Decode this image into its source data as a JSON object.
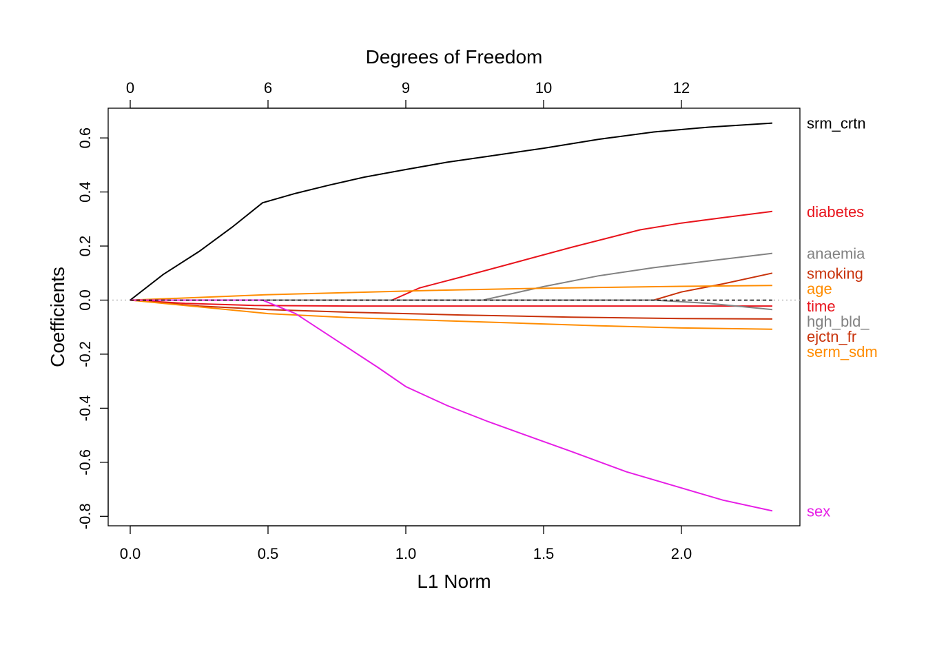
{
  "chart_data": {
    "type": "line",
    "title": "",
    "xlabel": "L1 Norm",
    "ylabel": "Coefficients",
    "top_axis_label": "Degrees of Freedom",
    "xlim": [
      -0.08,
      2.43
    ],
    "ylim": [
      -0.835,
      0.71
    ],
    "x_ticks": [
      {
        "value": 0.0,
        "label": "0.0"
      },
      {
        "value": 0.5,
        "label": "0.5"
      },
      {
        "value": 1.0,
        "label": "1.0"
      },
      {
        "value": 1.5,
        "label": "1.5"
      },
      {
        "value": 2.0,
        "label": "2.0"
      }
    ],
    "y_ticks": [
      {
        "value": 0.6,
        "label": "0.6"
      },
      {
        "value": 0.4,
        "label": "0.4"
      },
      {
        "value": 0.2,
        "label": "0.2"
      },
      {
        "value": 0.0,
        "label": "0.0"
      },
      {
        "value": -0.2,
        "label": "-0.2"
      },
      {
        "value": -0.4,
        "label": "-0.4"
      },
      {
        "value": -0.6,
        "label": "-0.6"
      },
      {
        "value": -0.8,
        "label": "-0.8"
      }
    ],
    "top_ticks": [
      {
        "value": 0.0,
        "label": "0"
      },
      {
        "value": 0.5,
        "label": "6"
      },
      {
        "value": 1.0,
        "label": "9"
      },
      {
        "value": 1.5,
        "label": "10"
      },
      {
        "value": 2.0,
        "label": "12"
      }
    ],
    "zero_line": true,
    "series": [
      {
        "name": "srm_crtn",
        "color": "#000000",
        "points": [
          [
            0.0,
            0.0
          ],
          [
            0.12,
            0.095
          ],
          [
            0.25,
            0.18
          ],
          [
            0.37,
            0.27
          ],
          [
            0.48,
            0.36
          ],
          [
            0.6,
            0.395
          ],
          [
            0.72,
            0.425
          ],
          [
            0.85,
            0.455
          ],
          [
            1.0,
            0.483
          ],
          [
            1.15,
            0.51
          ],
          [
            1.3,
            0.532
          ],
          [
            1.5,
            0.562
          ],
          [
            1.7,
            0.595
          ],
          [
            1.9,
            0.622
          ],
          [
            2.1,
            0.64
          ],
          [
            2.33,
            0.655
          ]
        ]
      },
      {
        "name": "diabetes",
        "color": "#e8141c",
        "points": [
          [
            0.0,
            0.0
          ],
          [
            0.95,
            0.0
          ],
          [
            1.05,
            0.045
          ],
          [
            1.2,
            0.085
          ],
          [
            1.4,
            0.14
          ],
          [
            1.6,
            0.195
          ],
          [
            1.85,
            0.26
          ],
          [
            2.0,
            0.285
          ],
          [
            2.15,
            0.305
          ],
          [
            2.33,
            0.328
          ]
        ]
      },
      {
        "name": "anaemia",
        "color": "#828282",
        "points": [
          [
            0.0,
            0.0
          ],
          [
            1.28,
            0.0
          ],
          [
            1.5,
            0.05
          ],
          [
            1.7,
            0.09
          ],
          [
            1.9,
            0.12
          ],
          [
            2.1,
            0.145
          ],
          [
            2.33,
            0.173
          ]
        ]
      },
      {
        "name": "smoking",
        "color": "#c8320a",
        "points": [
          [
            0.0,
            0.0
          ],
          [
            1.9,
            0.0
          ],
          [
            2.0,
            0.03
          ],
          [
            2.15,
            0.06
          ],
          [
            2.33,
            0.1
          ]
        ]
      },
      {
        "name": "age",
        "color": "#ff8c00",
        "points": [
          [
            0.0,
            0.0
          ],
          [
            0.25,
            0.01
          ],
          [
            0.5,
            0.02
          ],
          [
            0.8,
            0.028
          ],
          [
            1.1,
            0.036
          ],
          [
            1.4,
            0.042
          ],
          [
            1.7,
            0.047
          ],
          [
            2.0,
            0.051
          ],
          [
            2.33,
            0.054
          ]
        ]
      },
      {
        "name": "time",
        "color": "#e8141c",
        "points": [
          [
            0.0,
            0.0
          ],
          [
            0.2,
            -0.012
          ],
          [
            0.45,
            -0.02
          ],
          [
            0.8,
            -0.022
          ],
          [
            1.2,
            -0.022
          ],
          [
            1.6,
            -0.022
          ],
          [
            2.0,
            -0.022
          ],
          [
            2.33,
            -0.022
          ]
        ]
      },
      {
        "name": "hgh_bld_",
        "color": "#828282",
        "points": [
          [
            0.0,
            0.0
          ],
          [
            1.9,
            0.0
          ],
          [
            2.1,
            -0.012
          ],
          [
            2.33,
            -0.035
          ]
        ]
      },
      {
        "name": "ejctn_fr",
        "color": "#c8320a",
        "points": [
          [
            0.0,
            0.0
          ],
          [
            0.25,
            -0.022
          ],
          [
            0.5,
            -0.035
          ],
          [
            0.8,
            -0.045
          ],
          [
            1.2,
            -0.055
          ],
          [
            1.6,
            -0.063
          ],
          [
            2.0,
            -0.068
          ],
          [
            2.33,
            -0.07
          ]
        ]
      },
      {
        "name": "serm_sdm",
        "color": "#ff8c00",
        "points": [
          [
            0.0,
            0.0
          ],
          [
            0.25,
            -0.025
          ],
          [
            0.5,
            -0.05
          ],
          [
            0.8,
            -0.065
          ],
          [
            1.1,
            -0.075
          ],
          [
            1.4,
            -0.085
          ],
          [
            1.7,
            -0.095
          ],
          [
            2.0,
            -0.103
          ],
          [
            2.33,
            -0.108
          ]
        ]
      },
      {
        "name": "sex",
        "color": "#e61ee6",
        "points": [
          [
            0.0,
            0.0
          ],
          [
            0.48,
            0.0
          ],
          [
            0.6,
            -0.05
          ],
          [
            0.75,
            -0.15
          ],
          [
            0.9,
            -0.25
          ],
          [
            1.0,
            -0.32
          ],
          [
            1.15,
            -0.39
          ],
          [
            1.3,
            -0.45
          ],
          [
            1.45,
            -0.505
          ],
          [
            1.6,
            -0.56
          ],
          [
            1.8,
            -0.635
          ],
          [
            2.0,
            -0.695
          ],
          [
            2.15,
            -0.74
          ],
          [
            2.33,
            -0.78
          ]
        ]
      }
    ],
    "reference_line": {
      "color": "#000000",
      "points": [
        [
          0.0,
          0.0
        ],
        [
          2.33,
          0.0
        ]
      ]
    }
  }
}
